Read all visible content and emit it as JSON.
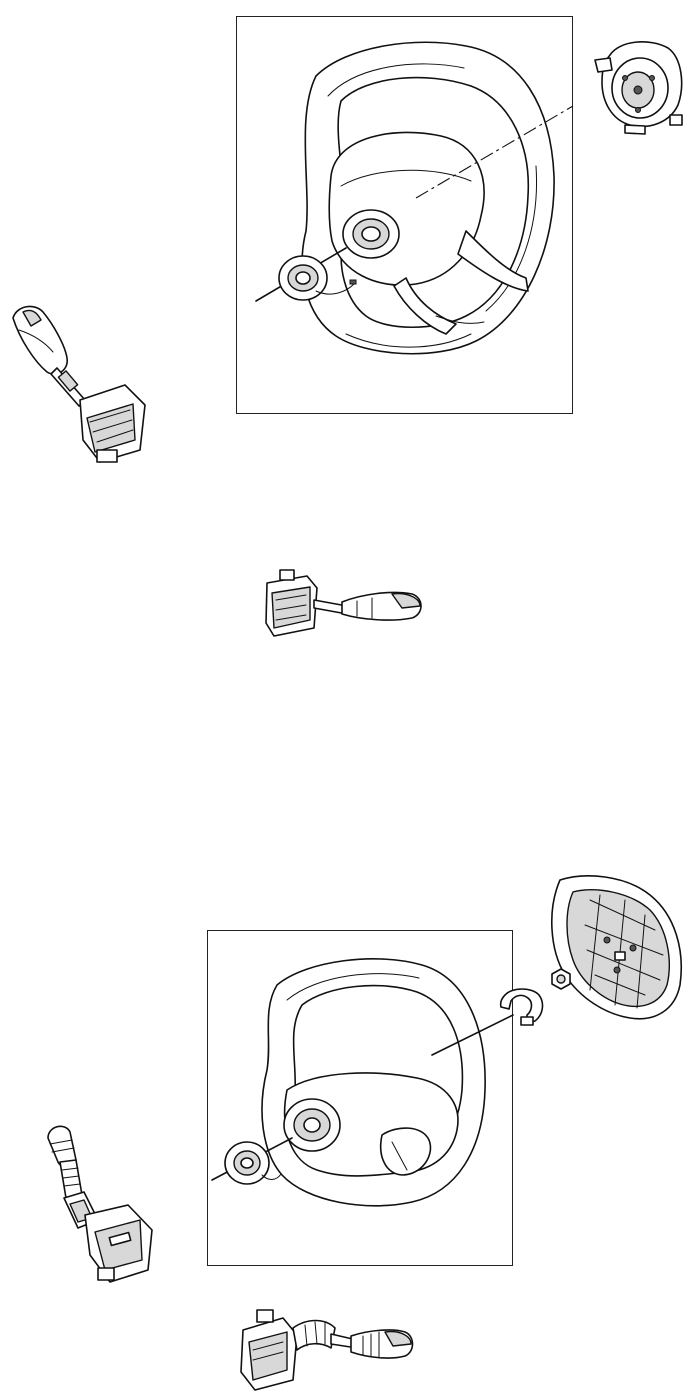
{
  "diagram": {
    "upper_group": {
      "parts": [
        "steering-wheel",
        "horn-pad",
        "clock-spring",
        "indicator-stalk",
        "wiper-stalk"
      ]
    },
    "lower_group": {
      "parts": [
        "steering-wheel",
        "airbag-module",
        "retaining-nut",
        "clip",
        "clock-spring",
        "indicator-stalk",
        "wiper-stalk"
      ]
    },
    "colors": {
      "line": "#111111",
      "shade": "#d8d8d8",
      "background": "#ffffff"
    }
  }
}
